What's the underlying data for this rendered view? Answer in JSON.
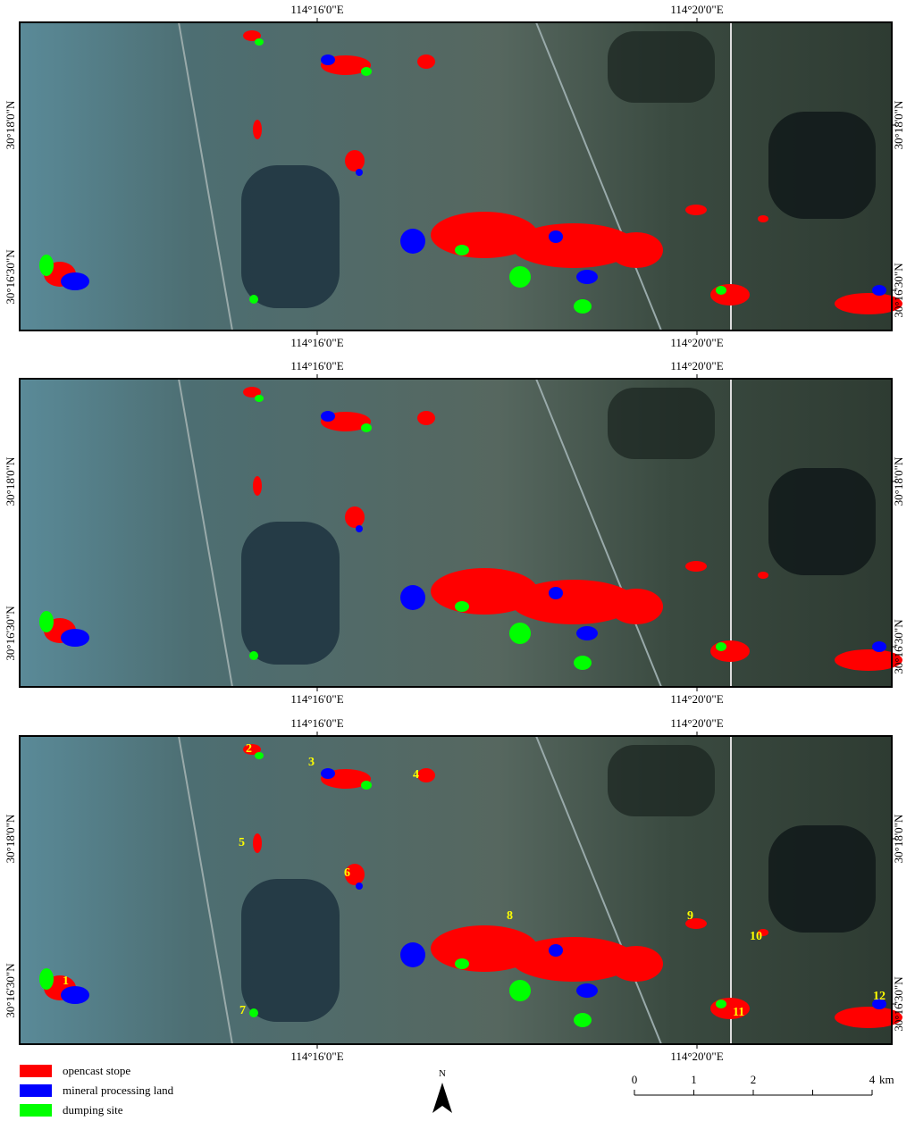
{
  "panels": [
    {
      "top_labels": [
        "114°16'0\"E",
        "114°20'0\"E"
      ],
      "bottom_labels": [
        "114°16'0\"E",
        "114°20'0\"E"
      ],
      "left_labels": [
        "30°18'0\"N",
        "30°16'30\"N"
      ],
      "right_labels": [
        "30°18'0\"N",
        "30°16'30\"N"
      ]
    },
    {
      "top_labels": [
        "114°16'0\"E",
        "114°20'0\"E"
      ],
      "bottom_labels": [
        "114°16'0\"E",
        "114°20'0\"E"
      ],
      "left_labels": [
        "30°18'0\"N",
        "30°16'30\"N"
      ],
      "right_labels": [
        "30°18'0\"N",
        "30°16'30\"N"
      ]
    },
    {
      "top_labels": [
        "114°16'0\"E",
        "114°20'0\"E"
      ],
      "bottom_labels": [
        "114°16'0\"E",
        "114°20'0\"E"
      ],
      "left_labels": [
        "30°18'0\"N",
        "30°16'30\"N"
      ],
      "right_labels": [
        "30°18'0\"N",
        "30°16'30\"N"
      ],
      "site_labels": [
        "1",
        "2",
        "3",
        "4",
        "5",
        "6",
        "7",
        "8",
        "9",
        "10",
        "11",
        "12"
      ]
    }
  ],
  "legend": [
    {
      "label": "opencast stope",
      "color": "#ff0000"
    },
    {
      "label": "mineral processing land",
      "color": "#0000ff"
    },
    {
      "label": "dumping site",
      "color": "#00ff00"
    }
  ],
  "north": "N",
  "scale_bar": {
    "ticks": [
      0,
      1,
      2,
      4
    ],
    "unit": "km"
  }
}
